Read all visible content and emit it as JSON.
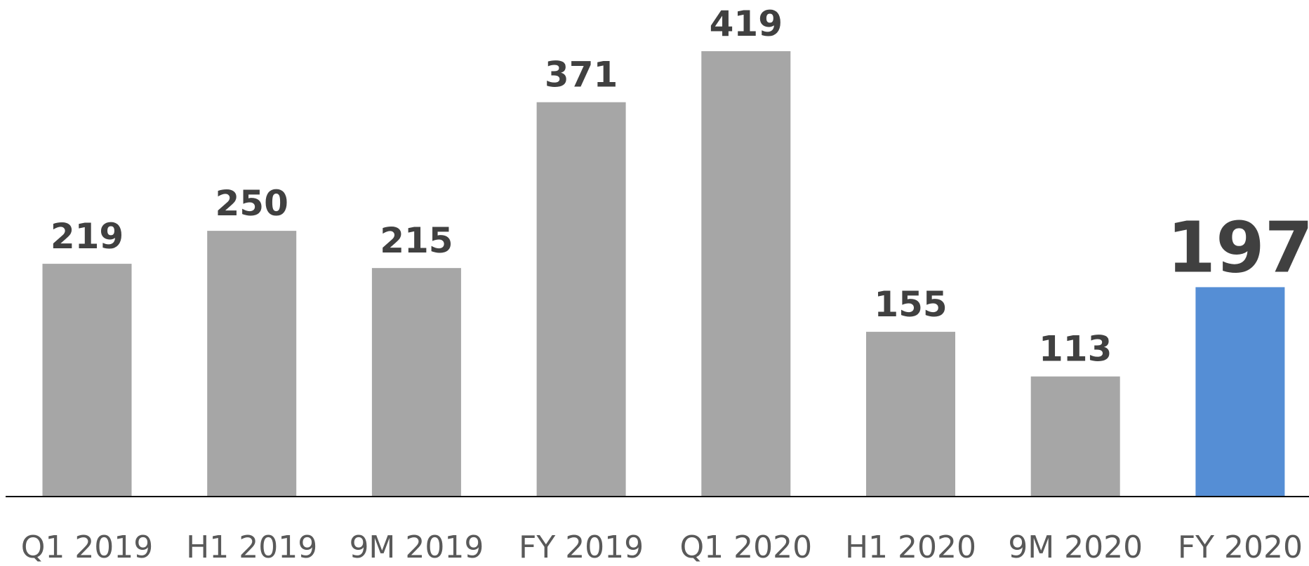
{
  "chart_data": {
    "type": "bar",
    "categories": [
      "Q1 2019",
      "H1 2019",
      "9M 2019",
      "FY 2019",
      "Q1 2020",
      "H1 2020",
      "9M 2020",
      "FY 2020"
    ],
    "values": [
      219,
      250,
      215,
      371,
      419,
      155,
      113,
      197
    ],
    "colors": [
      "#a6a6a6",
      "#a6a6a6",
      "#a6a6a6",
      "#a6a6a6",
      "#a6a6a6",
      "#a6a6a6",
      "#a6a6a6",
      "#558ed5"
    ],
    "grid": false
  }
}
